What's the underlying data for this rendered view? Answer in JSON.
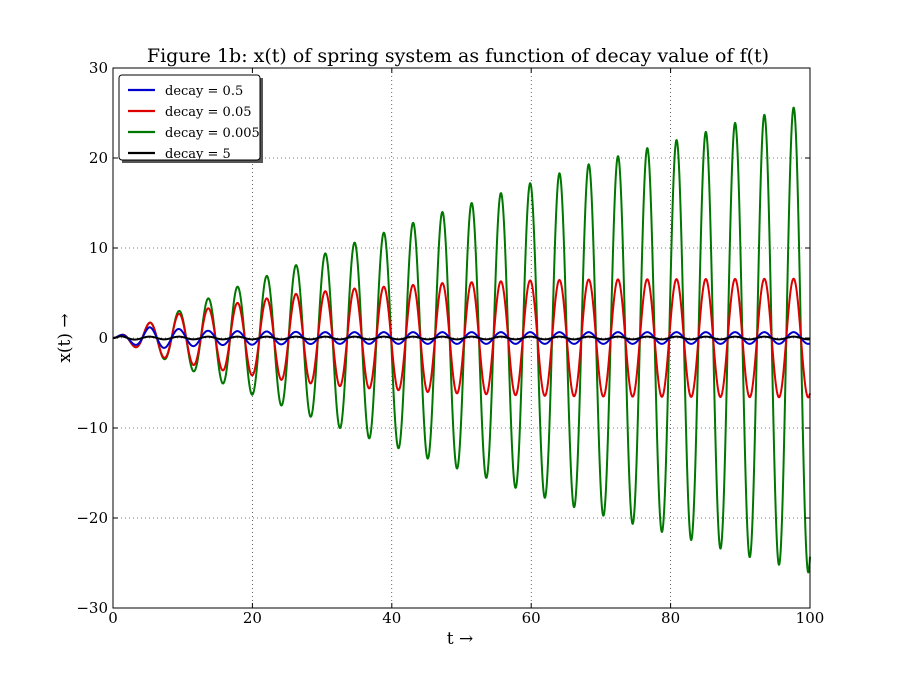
{
  "chart_data": {
    "type": "line",
    "title": "Figure 1b: x(t) of spring system as function of decay value of f(t)",
    "xlabel": "t →",
    "ylabel": "x(t) →",
    "xlim": [
      0,
      100
    ],
    "ylim": [
      -30,
      30
    ],
    "xticks": [
      0,
      20,
      40,
      60,
      80,
      100
    ],
    "yticks": [
      -30,
      -20,
      -10,
      0,
      10,
      20,
      30
    ],
    "xtick_labels": [
      "0",
      "20",
      "40",
      "60",
      "80",
      "100"
    ],
    "ytick_labels": [
      "−30",
      "−20",
      "−10",
      "0",
      "10",
      "20",
      "30"
    ],
    "grid": true,
    "legend_position": "top-left",
    "period": 4.2,
    "series": [
      {
        "name": "decay = 0.5",
        "color": "#0000cc",
        "peaks": [
          [
            0,
            0
          ],
          [
            1.05,
            0.3
          ],
          [
            5.25,
            1.2
          ],
          [
            9.45,
            1.0
          ],
          [
            13.65,
            0.8
          ],
          [
            30,
            0.65
          ],
          [
            100,
            0.65
          ]
        ]
      },
      {
        "name": "decay = 0.05",
        "color": "#dd0000",
        "peaks": [
          [
            0,
            0
          ],
          [
            1.05,
            0.3
          ],
          [
            5.25,
            1.7
          ],
          [
            9.45,
            2.7
          ],
          [
            13.65,
            3.3
          ],
          [
            17.85,
            3.9
          ],
          [
            22.05,
            4.4
          ],
          [
            26.25,
            4.9
          ],
          [
            30.45,
            5.2
          ],
          [
            34.65,
            5.5
          ],
          [
            38.85,
            5.7
          ],
          [
            43.05,
            5.9
          ],
          [
            47.25,
            6.1
          ],
          [
            51.45,
            6.2
          ],
          [
            55.65,
            6.3
          ],
          [
            59.85,
            6.4
          ],
          [
            68.25,
            6.5
          ],
          [
            100,
            6.6
          ]
        ]
      },
      {
        "name": "decay = 0.005",
        "color": "#007700",
        "peaks": [
          [
            0,
            0
          ],
          [
            1.05,
            0.3
          ],
          [
            5.25,
            1.7
          ],
          [
            9.45,
            3.0
          ],
          [
            13.65,
            4.4
          ],
          [
            17.85,
            5.7
          ],
          [
            22.05,
            6.9
          ],
          [
            26.25,
            8.1
          ],
          [
            30.45,
            9.4
          ],
          [
            34.65,
            10.6
          ],
          [
            38.85,
            11.7
          ],
          [
            43.05,
            12.8
          ],
          [
            47.25,
            14.0
          ],
          [
            51.45,
            15.0
          ],
          [
            55.65,
            16.1
          ],
          [
            59.85,
            17.2
          ],
          [
            64.05,
            18.3
          ],
          [
            68.25,
            19.3
          ],
          [
            72.45,
            20.2
          ],
          [
            76.65,
            21.1
          ],
          [
            80.85,
            22.0
          ],
          [
            85.05,
            22.9
          ],
          [
            89.25,
            23.9
          ],
          [
            93.45,
            24.8
          ],
          [
            97.65,
            25.6
          ],
          [
            100,
            26.1
          ]
        ]
      },
      {
        "name": "decay = 5",
        "color": "#000000",
        "peaks": [
          [
            0,
            0
          ],
          [
            1.05,
            0.2
          ],
          [
            5.25,
            0.15
          ],
          [
            100,
            0.15
          ]
        ]
      }
    ]
  }
}
